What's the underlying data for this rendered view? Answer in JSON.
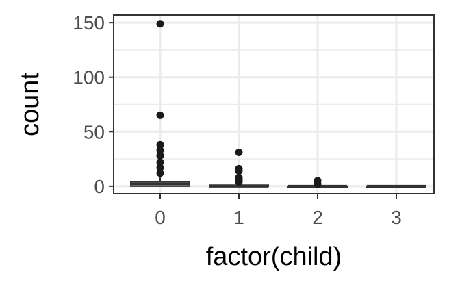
{
  "chart_data": {
    "type": "boxplot",
    "xlabel": "factor(child)",
    "ylabel": "count",
    "categories": [
      "0",
      "1",
      "2",
      "3"
    ],
    "ylim": [
      -7,
      157
    ],
    "yticks": [
      0,
      50,
      100,
      150
    ],
    "grid": true,
    "boxes": [
      {
        "category": "0",
        "min": 0,
        "q1": 0,
        "median": 2,
        "q3": 4,
        "max": 10,
        "outliers": [
          149,
          65,
          38,
          33,
          28,
          22,
          17,
          12
        ]
      },
      {
        "category": "1",
        "min": 0,
        "q1": 0,
        "median": 0,
        "q3": 1,
        "max": 2,
        "outliers": [
          31,
          16,
          14,
          8,
          6,
          4
        ]
      },
      {
        "category": "2",
        "min": 0,
        "q1": 0,
        "median": 0,
        "q3": 0,
        "max": 0,
        "outliers": [
          5,
          2
        ]
      },
      {
        "category": "3",
        "min": 0,
        "q1": 0,
        "median": 0,
        "q3": 0,
        "max": 0,
        "outliers": []
      }
    ]
  },
  "colors": {
    "panel_border": "#333333",
    "grid": "#ebebeb",
    "box_fill": "#ffffff",
    "box_line": "#333333",
    "point": "#1a1a1a",
    "tick_text": "#4d4d4d",
    "axis_title": "#000000"
  }
}
